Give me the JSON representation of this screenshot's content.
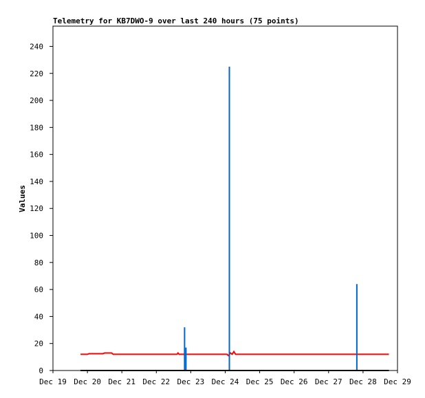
{
  "chart_data": {
    "type": "line",
    "title": "Telemetry for KB7DWO-9 over last 240 hours (75 points)",
    "xlabel": "",
    "ylabel": "Values",
    "x_tick_labels": [
      "Dec 19",
      "Dec 20",
      "Dec 21",
      "Dec 22",
      "Dec 23",
      "Dec 24",
      "Dec 25",
      "Dec 26",
      "Dec 27",
      "Dec 28",
      "Dec 29"
    ],
    "x_unit": "days since Dec 19",
    "xlim": [
      0,
      10
    ],
    "ylim": [
      0,
      255
    ],
    "y_ticks": [
      0,
      20,
      40,
      60,
      80,
      100,
      120,
      140,
      160,
      180,
      200,
      220,
      240
    ],
    "grid": false,
    "colors": {
      "red_series": "#ff0000",
      "blue_series": "#0066cc",
      "black_series": "#000000",
      "frame": "#000000"
    },
    "series": [
      {
        "color": "#ff0000",
        "style": "line",
        "points": [
          [
            0.8,
            12
          ],
          [
            1.0,
            12
          ],
          [
            1.05,
            12.5
          ],
          [
            1.45,
            12.5
          ],
          [
            1.5,
            13
          ],
          [
            1.7,
            13
          ],
          [
            1.75,
            12
          ],
          [
            3.6,
            12
          ],
          [
            3.63,
            13
          ],
          [
            3.66,
            12
          ],
          [
            5.05,
            12
          ],
          [
            5.1,
            11
          ],
          [
            5.15,
            13
          ],
          [
            5.2,
            12
          ],
          [
            5.25,
            14
          ],
          [
            5.3,
            12
          ],
          [
            9.75,
            12
          ]
        ]
      },
      {
        "color": "#0066cc",
        "style": "impulse",
        "points": [
          [
            3.82,
            32
          ],
          [
            3.86,
            17
          ],
          [
            5.12,
            225
          ],
          [
            8.82,
            64
          ]
        ]
      },
      {
        "color": "#000000",
        "style": "line",
        "points": [
          [
            0.8,
            0
          ],
          [
            9.75,
            0
          ]
        ]
      }
    ]
  }
}
